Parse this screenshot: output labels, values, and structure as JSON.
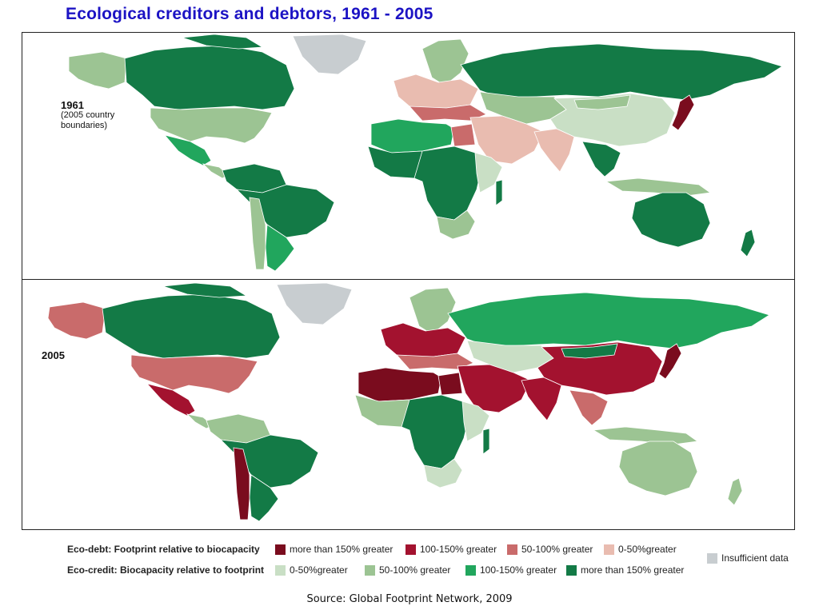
{
  "title": "Ecological creditors and debtors, 1961 - 2005",
  "maps": {
    "m1961": {
      "year": "1961",
      "note": [
        "(2005 country",
        "boundaries)"
      ],
      "regions": {
        "alaska": "credit_50_100",
        "canada": "credit_gt150",
        "greenland": "insufficient",
        "usa": "credit_50_100",
        "mexico": "credit_100_150",
        "central_america": "credit_50_100",
        "south_america_north": "credit_gt150",
        "brazil": "credit_gt150",
        "southern_cone": "credit_100_150",
        "chile": "credit_50_100",
        "europe_west": "debt_0_50",
        "europe_south": "debt_50_100",
        "scandinavia": "credit_50_100",
        "russia": "credit_gt150",
        "central_asia": "credit_50_100",
        "middle_east": "debt_0_50",
        "north_africa": "credit_100_150",
        "egypt": "debt_50_100",
        "west_africa": "credit_gt150",
        "central_africa": "credit_gt150",
        "east_africa": "credit_0_50",
        "southern_africa": "credit_50_100",
        "madagascar": "credit_gt150",
        "india": "debt_0_50",
        "china": "credit_0_50",
        "mongolia": "credit_50_100",
        "southeast_asia": "credit_gt150",
        "japan": "debt_gt150",
        "indonesia": "credit_50_100",
        "australia": "credit_gt150",
        "new_zealand": "credit_gt150"
      }
    },
    "m2005": {
      "year": "2005",
      "regions": {
        "alaska": "debt_50_100",
        "canada": "credit_gt150",
        "greenland": "insufficient",
        "usa": "debt_50_100",
        "mexico": "debt_100_150",
        "central_america": "credit_50_100",
        "south_america_north": "credit_50_100",
        "brazil": "credit_gt150",
        "southern_cone": "credit_gt150",
        "chile": "debt_gt150",
        "europe_west": "debt_100_150",
        "europe_south": "debt_50_100",
        "scandinavia": "credit_50_100",
        "russia": "credit_100_150",
        "central_asia": "credit_0_50",
        "middle_east": "debt_100_150",
        "north_africa": "debt_gt150",
        "egypt": "debt_gt150",
        "west_africa": "credit_50_100",
        "central_africa": "credit_gt150",
        "east_africa": "credit_0_50",
        "southern_africa": "credit_0_50",
        "madagascar": "credit_gt150",
        "india": "debt_100_150",
        "china": "debt_100_150",
        "mongolia": "credit_gt150",
        "southeast_asia": "debt_50_100",
        "japan": "debt_gt150",
        "indonesia": "credit_50_100",
        "australia": "credit_50_100",
        "new_zealand": "credit_50_100"
      }
    }
  },
  "legend": {
    "eco_debt_title": "Eco-debt: Footprint relative to biocapacity",
    "eco_credit_title": "Eco-credit: Biocapacity relative to footprint",
    "debt_items": [
      {
        "key": "debt_gt150",
        "label": "more than 150% greater",
        "color": "#7a0c1e"
      },
      {
        "key": "debt_100_150",
        "label": "100-150% greater",
        "color": "#a3122f"
      },
      {
        "key": "debt_50_100",
        "label": "50-100% greater",
        "color": "#c96b6b"
      },
      {
        "key": "debt_0_50",
        "label": "0-50%greater",
        "color": "#e9bcb0"
      }
    ],
    "credit_items": [
      {
        "key": "credit_0_50",
        "label": "0-50%greater",
        "color": "#c9dfc5"
      },
      {
        "key": "credit_50_100",
        "label": "50-100% greater",
        "color": "#9cc493"
      },
      {
        "key": "credit_100_150",
        "label": "100-150% greater",
        "color": "#21a65d"
      },
      {
        "key": "credit_gt150",
        "label": "more than 150% greater",
        "color": "#137a46"
      }
    ],
    "insufficient": {
      "key": "insufficient",
      "label": "Insufficient data",
      "color": "#c8cdd0"
    }
  },
  "source": "Source: Global Footprint Network, 2009"
}
